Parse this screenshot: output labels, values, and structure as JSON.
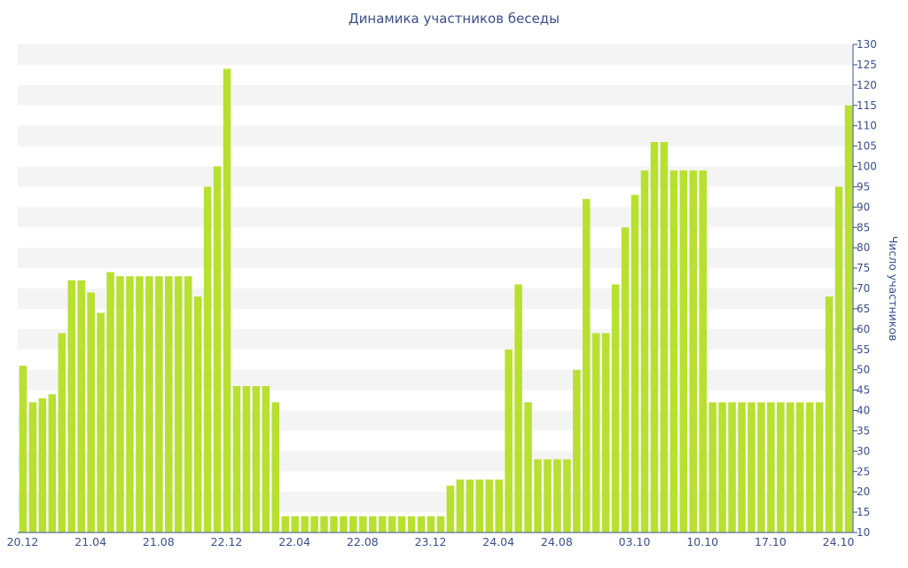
{
  "chart_data": {
    "type": "bar",
    "title": "Динамика участников беседы",
    "xlabel": "",
    "ylabel": "Число участников",
    "ylim": [
      10,
      130
    ],
    "y_ticks": [
      10,
      15,
      20,
      25,
      30,
      35,
      40,
      45,
      50,
      55,
      60,
      65,
      70,
      75,
      80,
      85,
      90,
      95,
      100,
      105,
      110,
      115,
      120,
      125,
      130
    ],
    "y_axis_position": "right",
    "grid": "alternating horizontal bands",
    "x_tick_labels": [
      {
        "label": "20.12",
        "index": 0
      },
      {
        "label": "21.04",
        "index": 7
      },
      {
        "label": "21.08",
        "index": 14
      },
      {
        "label": "22.12",
        "index": 21
      },
      {
        "label": "22.04",
        "index": 28
      },
      {
        "label": "22.08",
        "index": 35
      },
      {
        "label": "23.12",
        "index": 42
      },
      {
        "label": "24.04",
        "index": 49
      },
      {
        "label": "24.08",
        "index": 55
      },
      {
        "label": "03.10",
        "index": 63
      },
      {
        "label": "10.10",
        "index": 70
      },
      {
        "label": "17.10",
        "index": 77
      },
      {
        "label": "24.10",
        "index": 84
      }
    ],
    "bar_color": "#b8e030",
    "values": [
      51,
      42,
      43,
      44,
      59,
      72,
      72,
      69,
      64,
      74,
      73,
      73,
      73,
      73,
      73,
      73,
      73,
      73,
      68,
      95,
      100,
      124,
      46,
      46,
      46,
      46,
      42,
      14,
      14,
      14,
      14,
      14,
      14,
      14,
      14,
      14,
      14,
      14,
      14,
      14,
      14,
      14,
      14,
      14,
      21.5,
      23,
      23,
      23,
      23,
      23,
      55,
      71,
      42,
      28,
      28,
      28,
      28,
      50,
      92,
      59,
      59,
      71,
      85,
      93,
      99,
      106,
      106,
      99,
      99,
      99,
      99,
      42,
      42,
      42,
      42,
      42,
      42,
      42,
      42,
      42,
      42,
      42,
      42,
      68,
      95,
      115
    ]
  }
}
